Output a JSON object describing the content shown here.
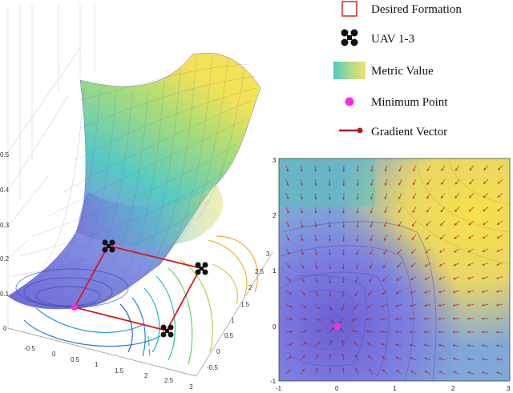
{
  "legend": {
    "items": [
      {
        "icon": "red-square-outline-icon",
        "label": "Desired Formation"
      },
      {
        "icon": "quadrotor-icon",
        "label": "UAV 1-3"
      },
      {
        "icon": "colormap-swatch-icon",
        "label": "Metric Value"
      },
      {
        "icon": "magenta-dot-icon",
        "label": "Minimum Point"
      },
      {
        "icon": "red-arrow-icon",
        "label": "Gradient Vector"
      }
    ]
  },
  "surface_plot": {
    "z_ticks": [
      "0.5",
      "0.4",
      "0.3",
      "0.2",
      "0.1",
      "0"
    ],
    "x_ticks": [
      "-0.5",
      "0",
      "0.5",
      "1",
      "1.5",
      "2",
      "2.5",
      "3"
    ],
    "y_ticks": [
      "3",
      "2.5",
      "2",
      "1.5",
      "1",
      "0.5",
      "0",
      "-0.5"
    ]
  },
  "heatmap": {
    "x_ticks": [
      "-1",
      "0",
      "1",
      "2",
      "3"
    ],
    "y_ticks": [
      "3",
      "2",
      "1",
      "0",
      "-1"
    ],
    "xlim": [
      -1,
      3
    ],
    "ylim": [
      -1,
      3
    ],
    "minimum_point": [
      0,
      0
    ]
  },
  "colors": {
    "low": "#6a5fd4",
    "mid": "#4fc7c0",
    "high": "#f3e14f",
    "formation": "#d81818",
    "minimum": "#ff2be0",
    "gradient": "#b31a1a"
  }
}
